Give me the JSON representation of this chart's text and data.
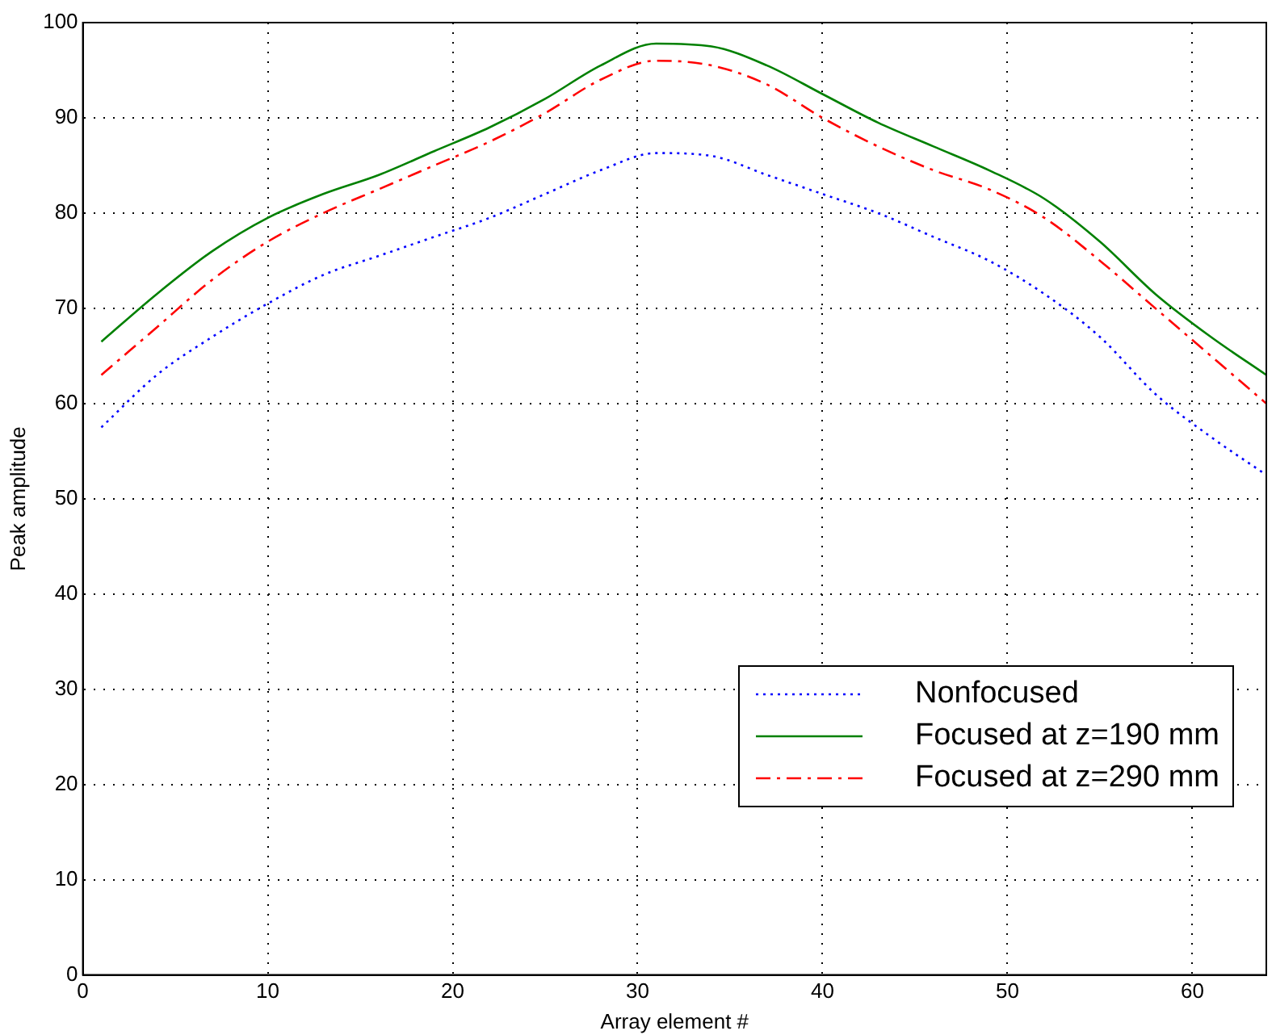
{
  "chart_data": {
    "type": "line",
    "xlabel": "Array element #",
    "ylabel": "Peak amplitude",
    "x": [
      1,
      4,
      7,
      10,
      13,
      16,
      19,
      22,
      25,
      28,
      31,
      34,
      37,
      40,
      43,
      46,
      49,
      52,
      55,
      58,
      61,
      64
    ],
    "series": [
      {
        "name": "Nonfocused",
        "color": "#0000ff",
        "line_style": "dotted",
        "values": [
          57.5,
          63,
          67,
          70.5,
          73.5,
          75.5,
          77.5,
          79.5,
          82,
          84.5,
          86.3,
          86,
          84,
          82,
          80,
          77.5,
          75,
          71.5,
          67,
          61,
          56.5,
          52.5
        ]
      },
      {
        "name": "Focused at z=190 mm",
        "color": "#008000",
        "line_style": "solid",
        "values": [
          66.5,
          71.5,
          76,
          79.5,
          82,
          84,
          86.5,
          89,
          92,
          95.5,
          97.8,
          97.5,
          95.5,
          92.5,
          89.5,
          87,
          84.5,
          81.5,
          77,
          71.5,
          67,
          63
        ]
      },
      {
        "name": "Focused at z=290 mm",
        "color": "#ff0000",
        "line_style": "dashed",
        "values": [
          63,
          68,
          73,
          77,
          80,
          82.5,
          85,
          87.5,
          90.5,
          94,
          96,
          95.5,
          93.5,
          90,
          87,
          84.5,
          82.5,
          79.5,
          75,
          70,
          65,
          60
        ]
      }
    ],
    "xlim": [
      0,
      64
    ],
    "xticks": [
      0,
      10,
      20,
      30,
      40,
      50,
      60
    ],
    "ylim": [
      0,
      100
    ],
    "yticks": [
      0,
      10,
      20,
      30,
      40,
      50,
      60,
      70,
      80,
      90,
      100
    ],
    "grid": true,
    "legend": "bottom right",
    "marker": "none"
  }
}
